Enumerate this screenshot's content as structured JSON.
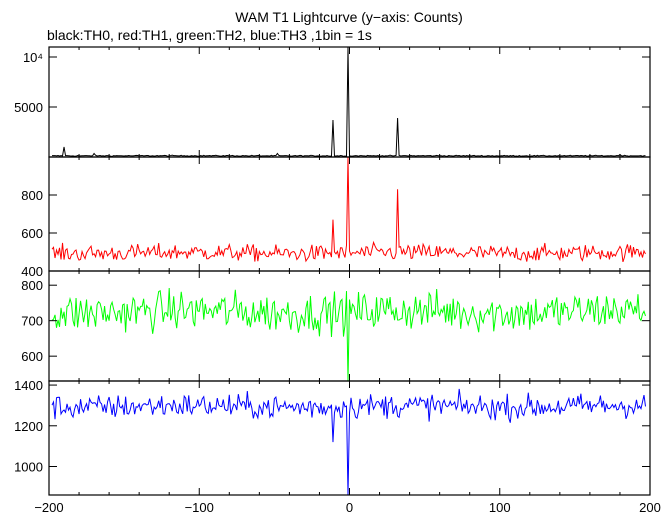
{
  "chart_data": {
    "type": "line",
    "title": "WAM T1 Lightcurve (y−axis: Counts)",
    "subtitle": "black:TH0, red:TH1, green:TH2, blue:TH3 ,1bin = 1s",
    "xlim": [
      -200,
      200
    ],
    "x_ticks": [
      -200,
      -100,
      0,
      100,
      200
    ],
    "x_tick_labels": [
      "−200",
      "−100",
      "0",
      "100",
      "200"
    ],
    "grid": false,
    "panels": [
      {
        "name": "TH0",
        "color": "#000000",
        "ylim": [
          0,
          11000
        ],
        "y_ticks": [
          5000,
          10000
        ],
        "y_tick_labels": [
          "5000",
          "10⁴"
        ],
        "baseline": 120,
        "noise": 25,
        "spikes": [
          {
            "x": -190,
            "y": 1000
          },
          {
            "x": -170,
            "y": 350
          },
          {
            "x": -48,
            "y": 350
          },
          {
            "x": -11,
            "y": 3700
          },
          {
            "x": -1,
            "y": 11000
          },
          {
            "x": 32,
            "y": 3900
          },
          {
            "x": 180,
            "y": 250
          }
        ]
      },
      {
        "name": "TH1",
        "color": "#ff0000",
        "ylim": [
          400,
          1000
        ],
        "y_ticks": [
          400,
          600,
          800
        ],
        "y_tick_labels": [
          "400",
          "600",
          "800"
        ],
        "baseline": 495,
        "noise": 22,
        "spikes": [
          {
            "x": -11,
            "y": 670
          },
          {
            "x": -1,
            "y": 1000
          },
          {
            "x": 32,
            "y": 830
          }
        ]
      },
      {
        "name": "TH2",
        "color": "#00ff00",
        "ylim": [
          530,
          840
        ],
        "y_ticks": [
          600,
          700,
          800
        ],
        "y_tick_labels": [
          "600",
          "700",
          "800"
        ],
        "baseline": 725,
        "noise": 28,
        "spikes": [
          {
            "x": -1,
            "y": 530
          }
        ]
      },
      {
        "name": "TH3",
        "color": "#0000ff",
        "ylim": [
          860,
          1420
        ],
        "y_ticks": [
          1000,
          1200,
          1400
        ],
        "y_tick_labels": [
          "1000",
          "1200",
          "1400"
        ],
        "baseline": 1295,
        "noise": 30,
        "spikes": [
          {
            "x": -11,
            "y": 1120
          },
          {
            "x": -1,
            "y": 860
          }
        ]
      }
    ]
  }
}
